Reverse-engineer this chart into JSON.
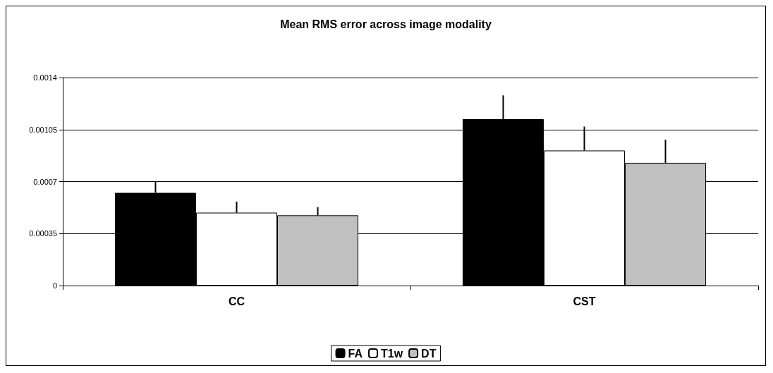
{
  "chart_data": {
    "type": "bar",
    "title": "Mean RMS error across image modality",
    "categories": [
      "CC",
      "CST"
    ],
    "series": [
      {
        "name": "FA",
        "color": "#000000",
        "values": [
          0.000624,
          0.00112
        ],
        "errors": [
          [
            0.000624,
            0.000698
          ],
          [
            0.00112,
            0.00128
          ]
        ]
      },
      {
        "name": "T1w",
        "color": "#ffffff",
        "values": [
          0.000491,
          0.000909
        ],
        "errors": [
          [
            0.000491,
            0.000565
          ],
          [
            0.000909,
            0.00107
          ]
        ]
      },
      {
        "name": "DT",
        "color": "#c0c0c0",
        "values": [
          0.000473,
          0.000826
        ],
        "errors": [
          [
            0.000473,
            0.000528
          ],
          [
            0.000826,
            0.000982
          ]
        ]
      }
    ],
    "ylim": [
      0,
      0.0014
    ],
    "yticks": [
      0,
      0.00035,
      0.0007,
      0.00105,
      0.0014
    ],
    "grid": "y",
    "legend": "bottom"
  }
}
